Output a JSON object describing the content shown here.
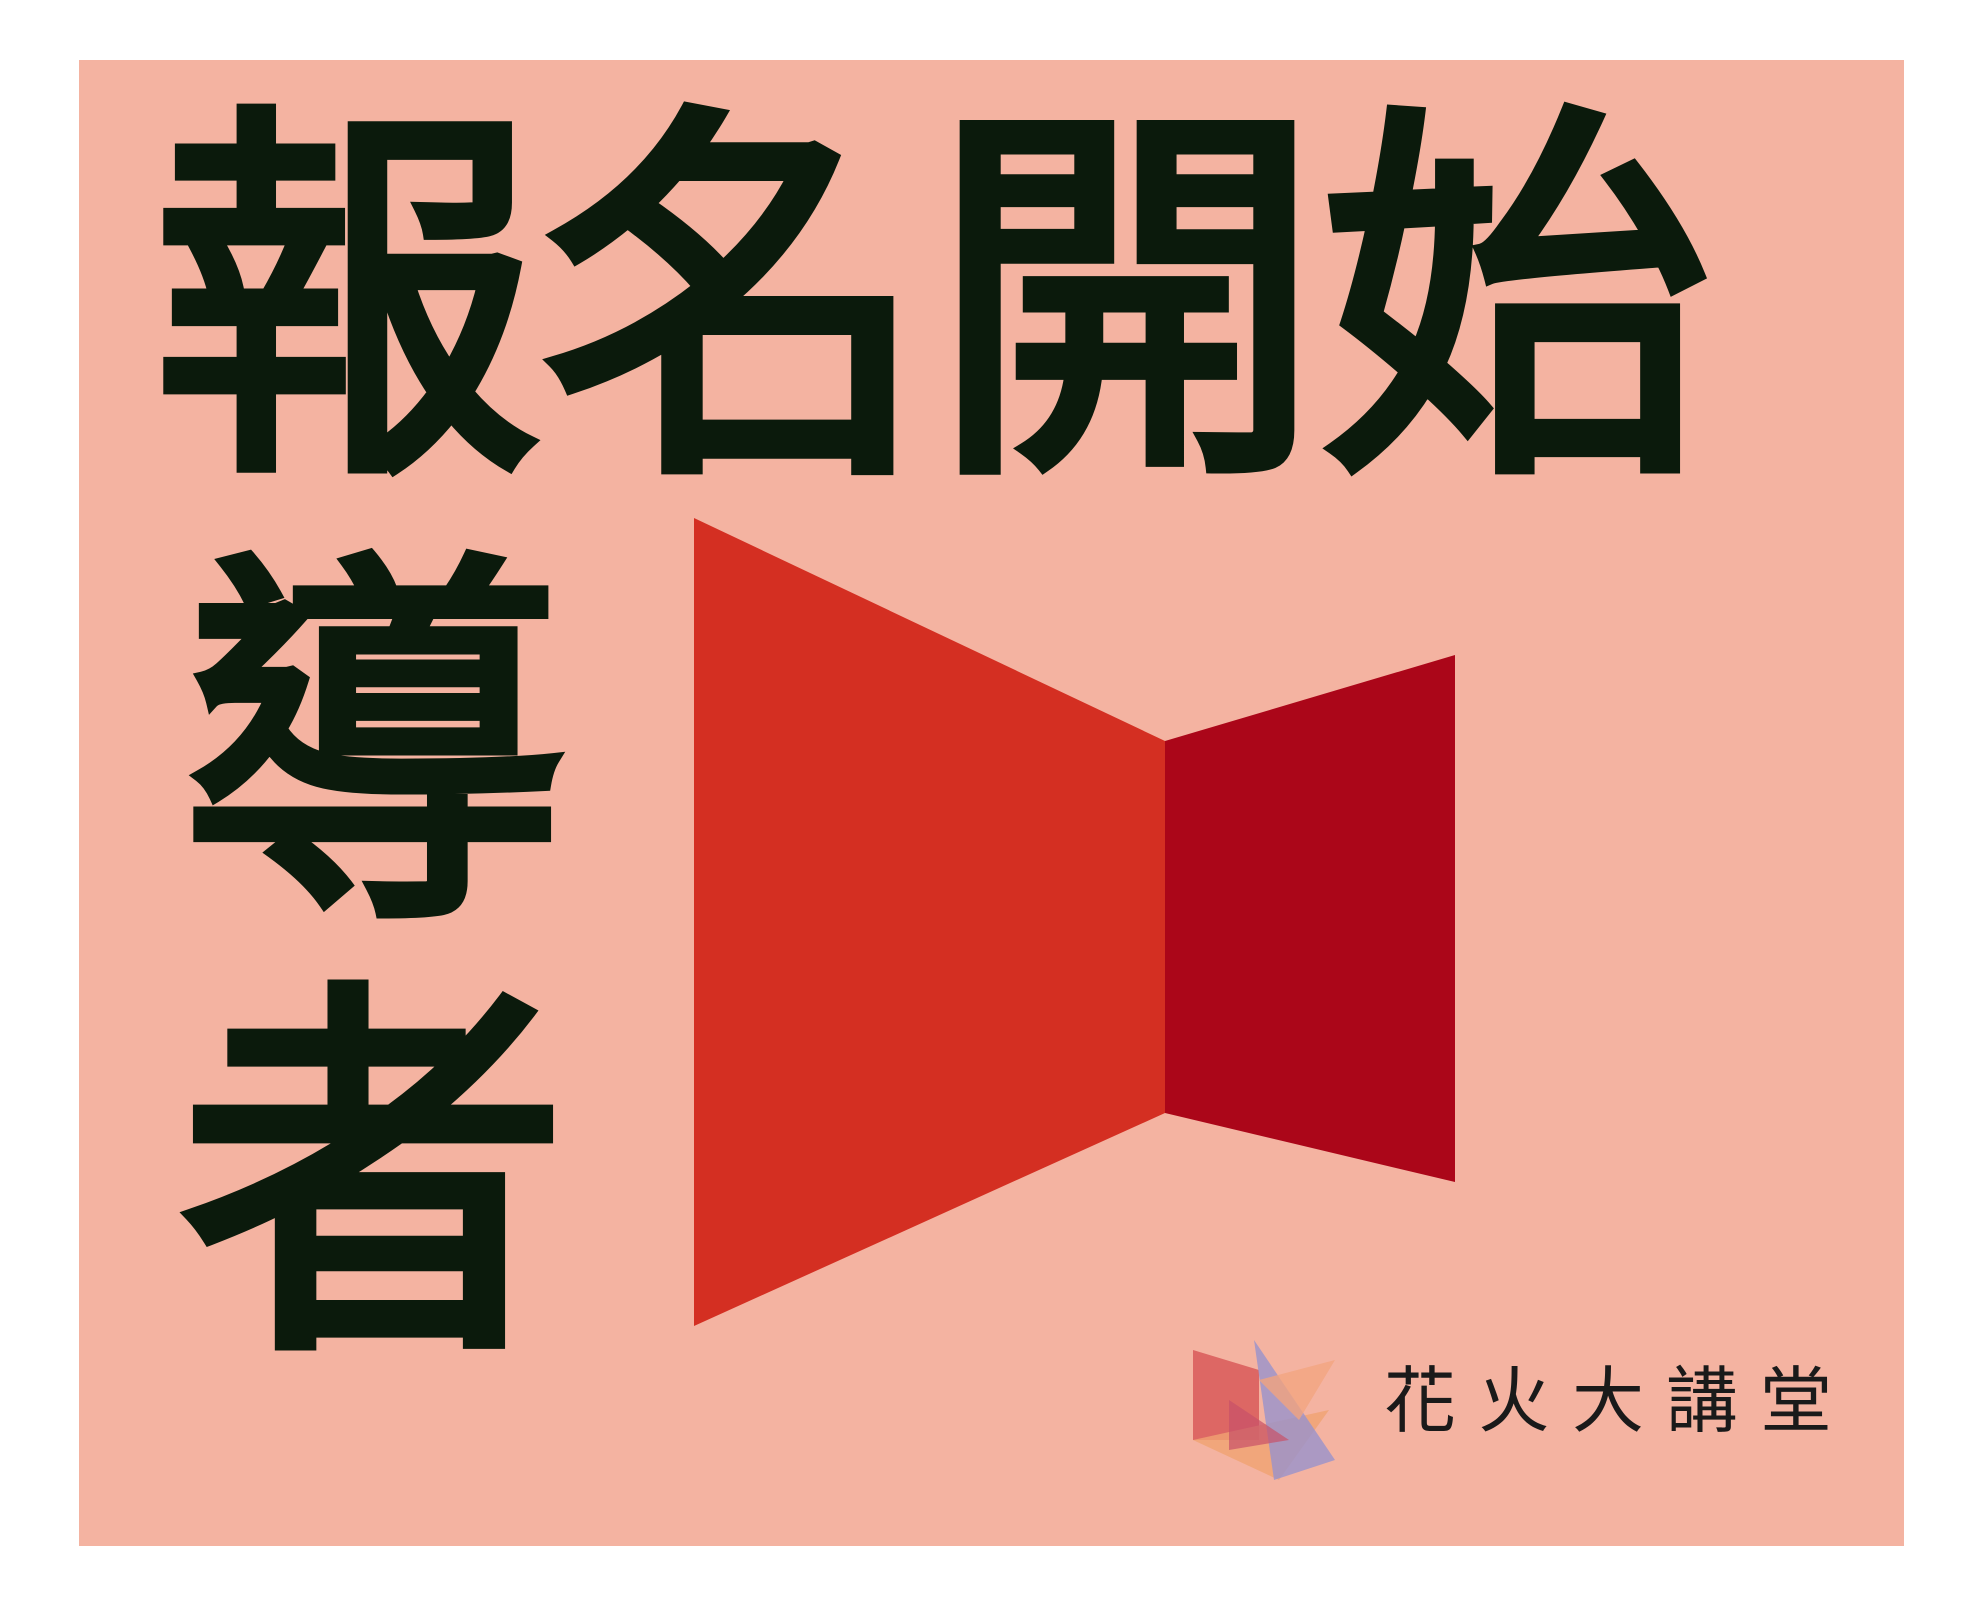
{
  "headline": {
    "line1": "報名開始",
    "line2": "導者"
  },
  "brand": "花火大講堂"
}
